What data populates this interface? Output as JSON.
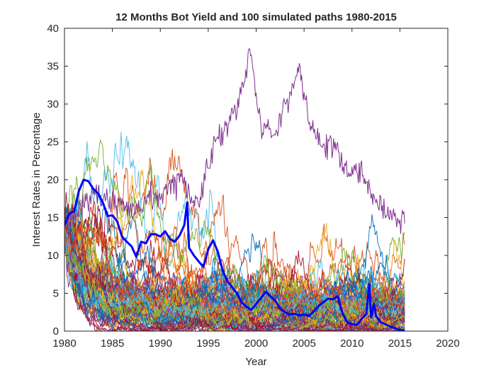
{
  "chart_data": {
    "type": "line",
    "title": "12 Months Bot Yield and 100 simulated paths 1980-2015",
    "xlabel": "Year",
    "ylabel": "Interest Rates in Percentage",
    "xlim": [
      1980,
      2020
    ],
    "ylim": [
      0,
      40
    ],
    "xticks": [
      1980,
      1985,
      1990,
      1995,
      2000,
      2005,
      2010,
      2015,
      2020
    ],
    "yticks": [
      0,
      5,
      10,
      15,
      20,
      25,
      30,
      35,
      40
    ],
    "grid": false,
    "legend": "none",
    "simulated_paths": {
      "count": 100,
      "start_x": 1980,
      "end_x": 2015.5,
      "start_y": 14,
      "colors": [
        "#0072BD",
        "#D95319",
        "#EDB120",
        "#7E2F8E",
        "#77AC30",
        "#4DBEEE",
        "#A2142F"
      ],
      "value_range": [
        0,
        37.2
      ]
    },
    "highlight_series": {
      "color": "#0000FF",
      "x": [
        1980.0,
        1980.5,
        1981.0,
        1981.5,
        1982.0,
        1982.5,
        1983.0,
        1983.5,
        1984.0,
        1984.5,
        1985.0,
        1985.5,
        1986.0,
        1986.5,
        1987.0,
        1987.5,
        1988.0,
        1988.5,
        1989.0,
        1989.5,
        1990.0,
        1990.5,
        1991.0,
        1991.5,
        1992.0,
        1992.5,
        1992.8,
        1993.0,
        1993.5,
        1994.0,
        1994.5,
        1995.0,
        1995.5,
        1996.0,
        1996.5,
        1997.0,
        1997.5,
        1998.0,
        1998.5,
        1999.0,
        1999.5,
        2000.0,
        2000.5,
        2001.0,
        2001.5,
        2002.0,
        2002.5,
        2003.0,
        2003.5,
        2004.0,
        2004.5,
        2005.0,
        2005.5,
        2006.0,
        2006.5,
        2007.0,
        2007.5,
        2008.0,
        2008.5,
        2009.0,
        2009.5,
        2010.0,
        2010.5,
        2011.0,
        2011.5,
        2011.8,
        2012.0,
        2012.3,
        2012.5,
        2013.0,
        2013.5,
        2014.0,
        2014.5,
        2015.0,
        2015.5
      ],
      "y": [
        14,
        15.5,
        15.8,
        18.5,
        20,
        19.8,
        18.8,
        18.2,
        17,
        15.2,
        15.3,
        14.5,
        12.5,
        11.8,
        11.2,
        9.8,
        11.8,
        11.6,
        12.8,
        12.8,
        12.5,
        13.2,
        12.2,
        11.8,
        12.6,
        14,
        17,
        11,
        10,
        9.2,
        8.5,
        10.8,
        12,
        10.5,
        8,
        6.6,
        5.8,
        5,
        3.8,
        3.2,
        2.8,
        3.6,
        4.4,
        5.2,
        4.6,
        4,
        3,
        2.5,
        2.2,
        2.3,
        2.1,
        2.2,
        2,
        2.6,
        3.3,
        3.8,
        4.3,
        4.2,
        4.6,
        2.4,
        1.2,
        0.9,
        0.8,
        1.6,
        2.3,
        6.2,
        1.8,
        3.6,
        2,
        1.2,
        0.9,
        0.6,
        0.4,
        0.1,
        0.1
      ]
    },
    "annotations": []
  }
}
